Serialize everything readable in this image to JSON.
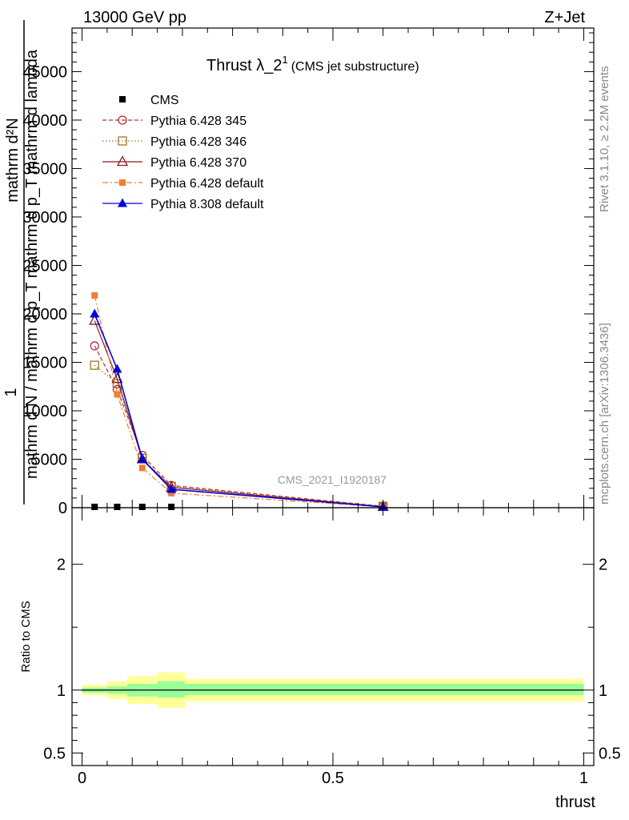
{
  "header": {
    "left": "13000 GeV pp",
    "right": "Z+Jet"
  },
  "side_labels": {
    "rivet": "Rivet 3.1.10, ≥ 2.2M events",
    "mcplots": "mcplots.cern.ch [arXiv:1306.3436]"
  },
  "watermark": "CMS_2021_I1920187",
  "colors": {
    "cms": "#000000",
    "p345": "#b03040",
    "p346": "#a07820",
    "p370": "#8b1a1a",
    "p6def": "#f07f30",
    "p8def": "#0000dd",
    "band_inner": "#99ff99",
    "band_outer": "#ffff99"
  },
  "chart_data": [
    {
      "type": "line",
      "title": "Thrust λ_2",
      "title_sup": "1",
      "title_note": "(CMS jet substructure)",
      "ylabel_top": "1",
      "ylabel_num": "mathrm d²N",
      "ylabel_den": "mathrm d N / mathrm d p_T mathrm d p_T mathrm d lambda",
      "xlim": [
        -0.02,
        1.02
      ],
      "ylim": [
        0,
        49500
      ],
      "yticks": [
        0,
        5000,
        10000,
        15000,
        20000,
        25000,
        30000,
        35000,
        40000,
        45000
      ],
      "ytick_labels": [
        "0",
        "5000",
        "10000",
        "15000",
        "20000",
        "25000",
        "30000",
        "35000",
        "40000",
        "45000"
      ],
      "legend_placement": "top-left",
      "series": [
        {
          "key": "cms",
          "name": "CMS",
          "x": [
            0.025,
            0.07,
            0.12,
            0.178
          ],
          "y": [
            0,
            0,
            0,
            0
          ]
        },
        {
          "key": "p345",
          "name": "Pythia 6.428 345",
          "x": [
            0.025,
            0.07,
            0.12,
            0.178,
            0.6
          ],
          "y": [
            16700,
            12200,
            5400,
            2300,
            150
          ]
        },
        {
          "key": "p346",
          "name": "Pythia 6.428 346",
          "x": [
            0.025,
            0.07,
            0.12,
            0.178,
            0.6
          ],
          "y": [
            14700,
            12800,
            5100,
            2200,
            150
          ]
        },
        {
          "key": "p370",
          "name": "Pythia 6.428 370",
          "x": [
            0.025,
            0.07,
            0.12,
            0.178,
            0.6
          ],
          "y": [
            19300,
            13300,
            5000,
            2100,
            100
          ]
        },
        {
          "key": "p6def",
          "name": "Pythia 6.428 default",
          "x": [
            0.025,
            0.07,
            0.12,
            0.178,
            0.6
          ],
          "y": [
            21900,
            11700,
            4100,
            1500,
            80
          ]
        },
        {
          "key": "p8def",
          "name": "Pythia 8.308 default",
          "x": [
            0.025,
            0.07,
            0.12,
            0.178,
            0.6
          ],
          "y": [
            20000,
            14300,
            5000,
            1900,
            80
          ]
        }
      ]
    },
    {
      "type": "area",
      "ylabel": "Ratio to CMS",
      "xlabel": "thrust",
      "xlim": [
        -0.02,
        1.02
      ],
      "ylim": [
        0.4,
        2.45
      ],
      "yticks": [
        0.5,
        1,
        2
      ],
      "ytick_labels": [
        "0.5",
        "1",
        "2"
      ],
      "xticks": [
        0,
        0.5,
        1
      ],
      "xtick_labels": [
        "0",
        "0.5",
        "1"
      ],
      "reference": 1,
      "bins": [
        {
          "lo": 0.0,
          "hi": 0.05,
          "inner": [
            0.98,
            1.02
          ],
          "outer": [
            0.96,
            1.04
          ]
        },
        {
          "lo": 0.05,
          "hi": 0.09,
          "inner": [
            0.97,
            1.03
          ],
          "outer": [
            0.93,
            1.07
          ]
        },
        {
          "lo": 0.09,
          "hi": 0.15,
          "inner": [
            0.95,
            1.05
          ],
          "outer": [
            0.89,
            1.11
          ]
        },
        {
          "lo": 0.15,
          "hi": 0.205,
          "inner": [
            0.94,
            1.07
          ],
          "outer": [
            0.86,
            1.14
          ]
        },
        {
          "lo": 0.205,
          "hi": 1.0,
          "inner": [
            0.96,
            1.05
          ],
          "outer": [
            0.91,
            1.09
          ]
        }
      ]
    }
  ]
}
